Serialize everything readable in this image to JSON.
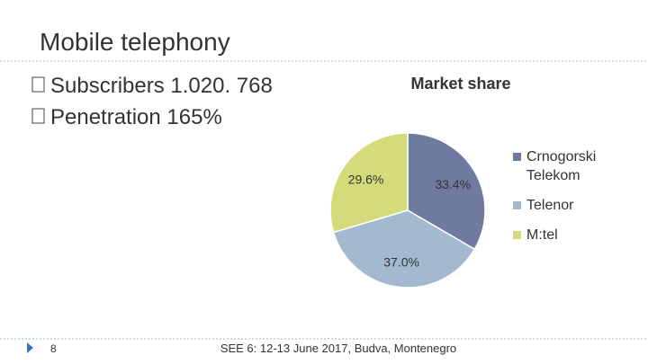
{
  "slide": {
    "title": "Mobile telephony",
    "bullets": [
      "Subscribers 1.020. 768",
      "Penetration 165%"
    ],
    "page_number": "8",
    "footer": "SEE 6: 12-13 June 2017, Budva, Montenegro"
  },
  "chart_data": {
    "type": "pie",
    "title": "Market share",
    "categories": [
      "Crnogorski Telekom",
      "Telenor",
      "M:tel"
    ],
    "values": [
      33.4,
      37.0,
      29.6
    ],
    "value_labels": [
      "33.4%",
      "37.0%",
      "29.6%"
    ],
    "colors": [
      "#6f7aa0",
      "#a3b9cf",
      "#d4db7a"
    ],
    "legend": "right"
  }
}
